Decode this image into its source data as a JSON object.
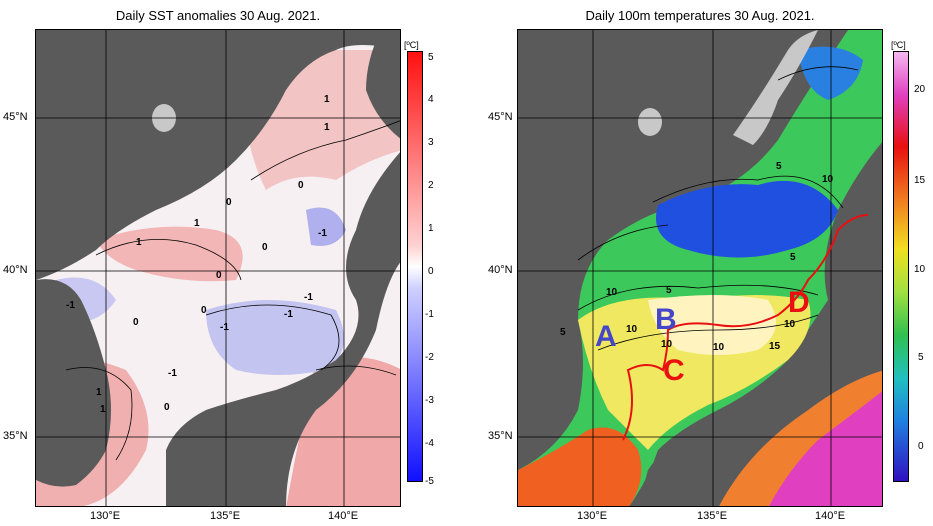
{
  "left_panel": {
    "title": "Daily SST anomalies 30 Aug. 2021.",
    "unit": "[ºC]",
    "colorbar_ticks": [
      "5",
      "4",
      "3",
      "2",
      "1",
      "0",
      "-1",
      "-2",
      "-3",
      "-4",
      "-5"
    ],
    "contour_labels": [
      "1",
      "1",
      "1",
      "0",
      "0",
      "1",
      "1",
      "0",
      "-1",
      "0",
      "-1",
      "-1",
      "0",
      "-1",
      "0",
      "-1",
      "-1",
      "1",
      "0"
    ]
  },
  "right_panel": {
    "title": "Daily 100m temperatures 30 Aug. 2021.",
    "unit": "[ºC]",
    "colorbar_ticks": [
      "20",
      "15",
      "10",
      "5",
      "0"
    ],
    "contour_labels": [
      "5",
      "10",
      "5",
      "10",
      "5",
      "5",
      "10",
      "10",
      "15",
      "10",
      "10"
    ],
    "markers": {
      "A": "A",
      "B": "B",
      "C": "C",
      "D": "D"
    }
  },
  "axes": {
    "lat_labels": [
      "45°N",
      "40°N",
      "35°N"
    ],
    "lon_labels": [
      "130°E",
      "135°E",
      "140°E"
    ]
  },
  "colors": {
    "land": "#5a5a5a",
    "shelf": "#c8c8c8",
    "anomaly_positive": "#f2a8a8",
    "anomaly_negative": "#b8b8f2",
    "marker_blue": "#4646c8",
    "marker_red": "#e81010",
    "track_red": "#e81010"
  }
}
